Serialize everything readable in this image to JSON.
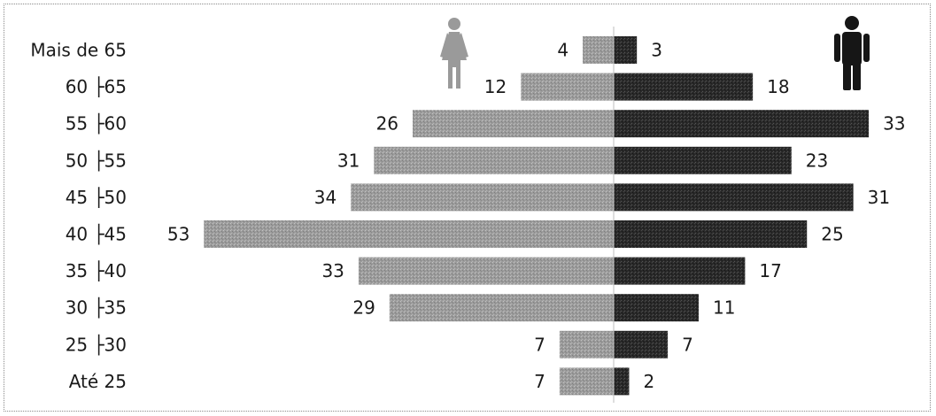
{
  "chart_data": {
    "type": "bar",
    "orientation": "horizontal",
    "layout": "population-pyramid",
    "categories": [
      "Mais de 65",
      "60 ├65",
      "55 ├60",
      "50 ├55",
      "45 ├50",
      "40 ├45",
      "35 ├40",
      "30 ├35",
      "25 ├30",
      "Até 25"
    ],
    "series": [
      {
        "values": [
          4,
          12,
          26,
          31,
          34,
          53,
          33,
          29,
          7,
          7
        ],
        "color": "#9a9a9a",
        "side": "left",
        "icon": "female-icon"
      },
      {
        "values": [
          3,
          18,
          33,
          23,
          31,
          25,
          17,
          11,
          7,
          2
        ],
        "color": "#2b2b2b",
        "side": "right",
        "icon": "male-icon"
      }
    ],
    "title": "",
    "xlabel": "",
    "ylabel": "",
    "grid": false,
    "legend": "icons at top"
  }
}
